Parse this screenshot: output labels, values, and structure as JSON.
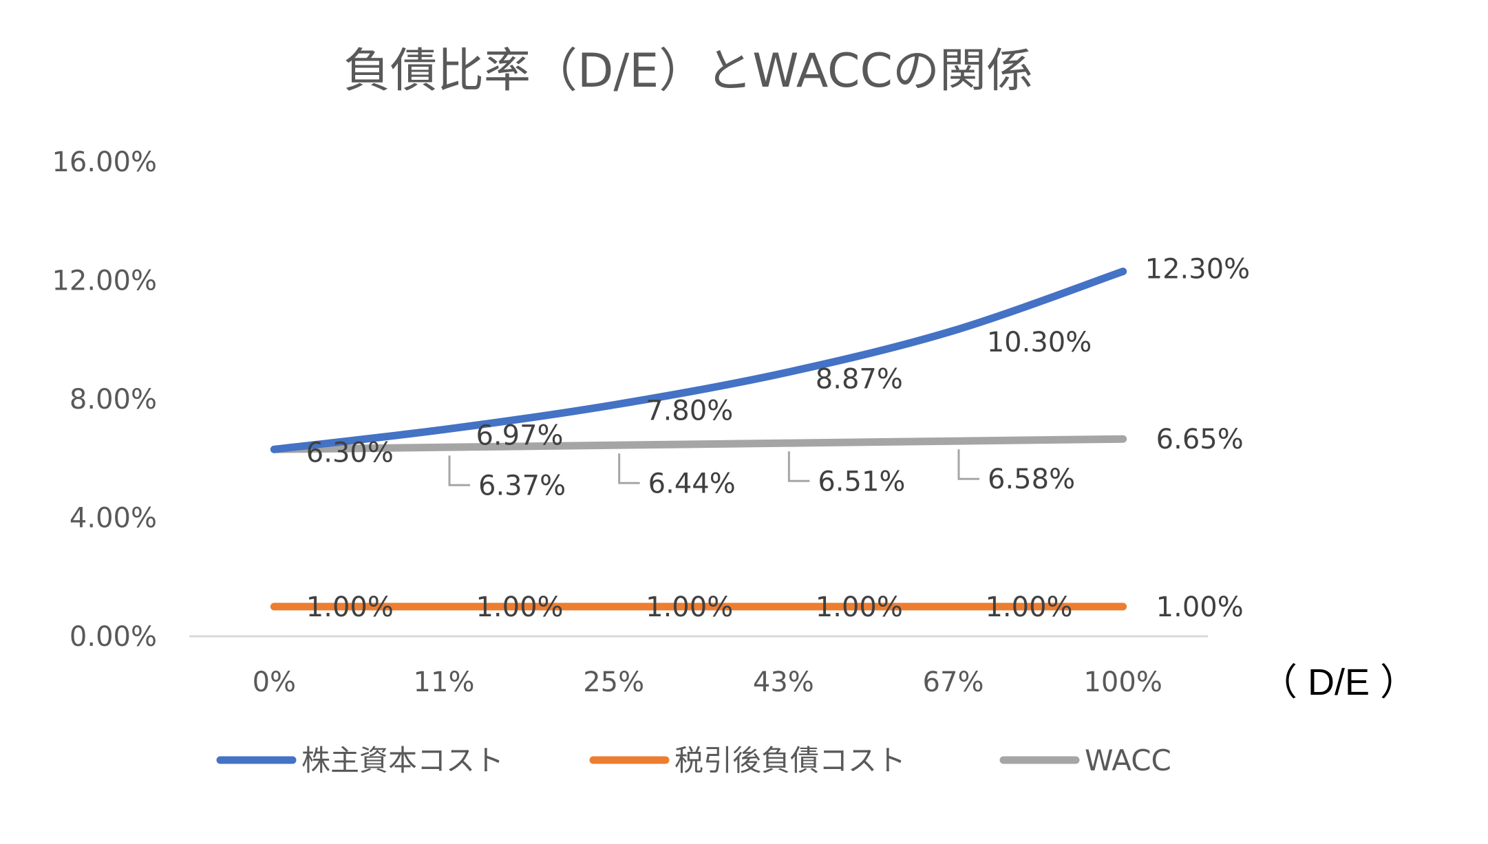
{
  "chart_data": {
    "type": "line",
    "title": "負債比率（D/E）とWACCの関係",
    "xlabel": "（ D/E ）",
    "ylabel": "",
    "categories": [
      "0%",
      "11%",
      "25%",
      "43%",
      "67%",
      "100%"
    ],
    "ylim": [
      0,
      16
    ],
    "yticks": [
      "0.00%",
      "4.00%",
      "8.00%",
      "12.00%",
      "16.00%"
    ],
    "ytick_values": [
      0,
      4,
      8,
      12,
      16
    ],
    "grid": false,
    "legend": "bottom",
    "series": [
      {
        "name": "株主資本コスト",
        "color": "#4472C4",
        "values": [
          6.3,
          6.97,
          7.8,
          8.87,
          10.3,
          12.3
        ],
        "labels": [
          "6.30%",
          "6.97%",
          "7.80%",
          "8.87%",
          "10.30%",
          "12.30%"
        ]
      },
      {
        "name": "税引後負債コスト",
        "color": "#ED7D31",
        "values": [
          1.0,
          1.0,
          1.0,
          1.0,
          1.0,
          1.0
        ],
        "labels": [
          "1.00%",
          "1.00%",
          "1.00%",
          "1.00%",
          "1.00%",
          "1.00%"
        ]
      },
      {
        "name": "WACC",
        "color": "#A5A5A5",
        "values": [
          6.3,
          6.37,
          6.44,
          6.51,
          6.58,
          6.65
        ],
        "labels": [
          "",
          "6.37%",
          "6.44%",
          "6.51%",
          "6.58%",
          "6.65%"
        ]
      }
    ]
  }
}
